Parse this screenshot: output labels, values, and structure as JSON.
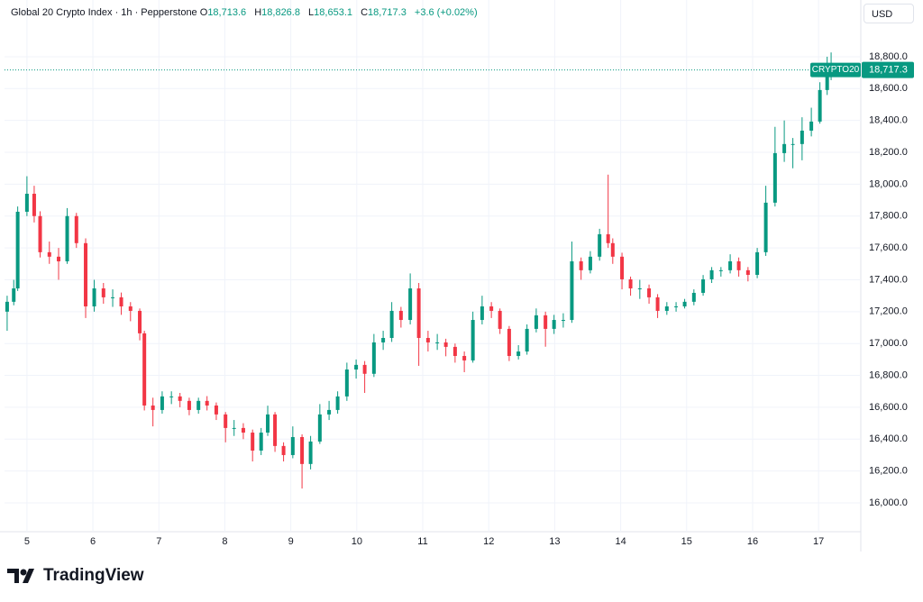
{
  "chart_data": {
    "type": "candlestick",
    "header": {
      "instrument": "Global 20 Crypto Index · 1h · Pepperstone",
      "o_label": "O",
      "o": "18,713.6",
      "h_label": "H",
      "h": "18,826.8",
      "l_label": "L",
      "l": "18,653.1",
      "c_label": "C",
      "c": "18,717.3",
      "change": "+3.6 (+0.02%)"
    },
    "currency": "USD",
    "symbol": "CRYPTO20",
    "last_price": {
      "value": 18717.3,
      "label": "18,717.3"
    },
    "brand": "TradingView",
    "up_color": "#089981",
    "down_color": "#f23645",
    "grid": true,
    "xlim": [
      4.66,
      17.64
    ],
    "xticks": [
      5,
      6,
      7,
      8,
      9,
      10,
      11,
      12,
      13,
      14,
      15,
      16,
      17
    ],
    "ylim": [
      15819,
      19156
    ],
    "yticks": [
      {
        "value": 16000,
        "label": "16,000.0"
      },
      {
        "value": 16200,
        "label": "16,200.0"
      },
      {
        "value": 16400,
        "label": "16,400.0"
      },
      {
        "value": 16600,
        "label": "16,600.0"
      },
      {
        "value": 16800,
        "label": "16,800.0"
      },
      {
        "value": 17000,
        "label": "17,000.0"
      },
      {
        "value": 17200,
        "label": "17,200.0"
      },
      {
        "value": 17400,
        "label": "17,400.0"
      },
      {
        "value": 17600,
        "label": "17,600.0"
      },
      {
        "value": 17800,
        "label": "17,800.0"
      },
      {
        "value": 18000,
        "label": "18,000.0"
      },
      {
        "value": 18200,
        "label": "18,200.0"
      },
      {
        "value": 18400,
        "label": "18,400.0"
      },
      {
        "value": 18600,
        "label": "18,600.0"
      },
      {
        "value": 18800,
        "label": "18,800.0"
      }
    ],
    "x": [
      4.7,
      4.8,
      4.86,
      5.0,
      5.11,
      5.2,
      5.34,
      5.48,
      5.61,
      5.75,
      5.89,
      6.02,
      6.16,
      6.3,
      6.43,
      6.57,
      6.71,
      6.78,
      6.91,
      7.05,
      7.19,
      7.32,
      7.46,
      7.6,
      7.73,
      7.87,
      8.01,
      8.14,
      8.28,
      8.42,
      8.55,
      8.65,
      8.76,
      8.89,
      9.03,
      9.17,
      9.3,
      9.44,
      9.58,
      9.71,
      9.85,
      9.99,
      10.12,
      10.26,
      10.4,
      10.53,
      10.67,
      10.81,
      10.94,
      11.08,
      11.22,
      11.35,
      11.49,
      11.63,
      11.76,
      11.9,
      12.04,
      12.17,
      12.31,
      12.45,
      12.58,
      12.72,
      12.86,
      12.99,
      13.13,
      13.26,
      13.4,
      13.54,
      13.68,
      13.81,
      13.88,
      14.02,
      14.15,
      14.29,
      14.43,
      14.56,
      14.7,
      14.84,
      14.97,
      15.11,
      15.25,
      15.38,
      15.52,
      15.66,
      15.79,
      15.93,
      16.07,
      16.2,
      16.34,
      16.48,
      16.61,
      16.75,
      16.89,
      17.02,
      17.13,
      17.19
    ],
    "ohlc": [
      [
        17200,
        17300,
        17080,
        17262
      ],
      [
        17262,
        17400,
        17240,
        17346
      ],
      [
        17346,
        17860,
        17330,
        17827
      ],
      [
        17827,
        18050,
        17800,
        17940
      ],
      [
        17940,
        17990,
        17760,
        17800
      ],
      [
        17800,
        17830,
        17540,
        17573
      ],
      [
        17573,
        17640,
        17500,
        17545
      ],
      [
        17545,
        17600,
        17400,
        17516
      ],
      [
        17516,
        17850,
        17500,
        17800
      ],
      [
        17800,
        17820,
        17600,
        17630
      ],
      [
        17630,
        17660,
        17160,
        17233
      ],
      [
        17233,
        17400,
        17200,
        17346
      ],
      [
        17346,
        17380,
        17250,
        17290
      ],
      [
        17290,
        17340,
        17230,
        17290
      ],
      [
        17290,
        17320,
        17180,
        17233
      ],
      [
        17233,
        17260,
        17140,
        17205
      ],
      [
        17205,
        17220,
        17020,
        17064
      ],
      [
        17064,
        17080,
        16580,
        16611
      ],
      [
        16611,
        16660,
        16480,
        16583
      ],
      [
        16583,
        16700,
        16560,
        16668
      ],
      [
        16668,
        16700,
        16620,
        16668
      ],
      [
        16668,
        16690,
        16600,
        16640
      ],
      [
        16640,
        16660,
        16550,
        16583
      ],
      [
        16583,
        16660,
        16560,
        16640
      ],
      [
        16640,
        16670,
        16580,
        16611
      ],
      [
        16611,
        16630,
        16520,
        16555
      ],
      [
        16555,
        16570,
        16380,
        16470
      ],
      [
        16470,
        16520,
        16420,
        16470
      ],
      [
        16470,
        16500,
        16400,
        16441
      ],
      [
        16441,
        16460,
        16260,
        16328
      ],
      [
        16328,
        16470,
        16300,
        16441
      ],
      [
        16441,
        16610,
        16420,
        16555
      ],
      [
        16555,
        16570,
        16320,
        16357
      ],
      [
        16357,
        16380,
        16260,
        16300
      ],
      [
        16300,
        16480,
        16280,
        16413
      ],
      [
        16413,
        16430,
        16090,
        16244
      ],
      [
        16244,
        16420,
        16210,
        16385
      ],
      [
        16385,
        16620,
        16370,
        16555
      ],
      [
        16555,
        16640,
        16520,
        16583
      ],
      [
        16583,
        16700,
        16560,
        16668
      ],
      [
        16668,
        16880,
        16640,
        16837
      ],
      [
        16837,
        16900,
        16780,
        16866
      ],
      [
        16866,
        16890,
        16690,
        16810
      ],
      [
        16810,
        17060,
        16790,
        17007
      ],
      [
        17007,
        17080,
        16960,
        17035
      ],
      [
        17035,
        17260,
        17010,
        17205
      ],
      [
        17205,
        17230,
        17100,
        17148
      ],
      [
        17148,
        17440,
        17120,
        17346
      ],
      [
        17346,
        17380,
        16860,
        17035
      ],
      [
        17035,
        17080,
        16950,
        17007
      ],
      [
        17007,
        17060,
        16960,
        17007
      ],
      [
        17007,
        17030,
        16920,
        16979
      ],
      [
        16979,
        17000,
        16880,
        16922
      ],
      [
        16922,
        16950,
        16820,
        16894
      ],
      [
        16894,
        17200,
        16880,
        17148
      ],
      [
        17148,
        17300,
        17120,
        17233
      ],
      [
        17233,
        17260,
        17160,
        17205
      ],
      [
        17205,
        17220,
        17060,
        17092
      ],
      [
        17092,
        17110,
        16890,
        16922
      ],
      [
        16922,
        16990,
        16900,
        16950
      ],
      [
        16950,
        17120,
        16930,
        17092
      ],
      [
        17092,
        17220,
        17070,
        17177
      ],
      [
        17177,
        17200,
        16980,
        17092
      ],
      [
        17092,
        17180,
        17060,
        17148
      ],
      [
        17148,
        17190,
        17100,
        17148
      ],
      [
        17148,
        17640,
        17130,
        17516
      ],
      [
        17516,
        17540,
        17400,
        17460
      ],
      [
        17460,
        17580,
        17440,
        17545
      ],
      [
        17545,
        17720,
        17520,
        17686
      ],
      [
        17686,
        18060,
        17600,
        17630
      ],
      [
        17630,
        17660,
        17500,
        17545
      ],
      [
        17545,
        17570,
        17340,
        17403
      ],
      [
        17403,
        17420,
        17300,
        17346
      ],
      [
        17346,
        17400,
        17280,
        17346
      ],
      [
        17346,
        17370,
        17250,
        17290
      ],
      [
        17290,
        17310,
        17160,
        17205
      ],
      [
        17205,
        17260,
        17180,
        17233
      ],
      [
        17233,
        17260,
        17200,
        17233
      ],
      [
        17233,
        17280,
        17220,
        17262
      ],
      [
        17262,
        17340,
        17240,
        17318
      ],
      [
        17318,
        17430,
        17300,
        17403
      ],
      [
        17403,
        17480,
        17380,
        17460
      ],
      [
        17460,
        17480,
        17420,
        17460
      ],
      [
        17460,
        17560,
        17440,
        17516
      ],
      [
        17516,
        17540,
        17420,
        17460
      ],
      [
        17460,
        17480,
        17390,
        17431
      ],
      [
        17431,
        17600,
        17410,
        17573
      ],
      [
        17573,
        17990,
        17550,
        17884
      ],
      [
        17884,
        18360,
        17860,
        18195
      ],
      [
        18195,
        18400,
        18140,
        18252
      ],
      [
        18252,
        18290,
        18100,
        18252
      ],
      [
        18252,
        18420,
        18150,
        18336
      ],
      [
        18336,
        18480,
        18300,
        18393
      ],
      [
        18393,
        18640,
        18380,
        18591
      ],
      [
        18591,
        18800,
        18560,
        18704
      ],
      [
        18713.6,
        18826.8,
        18653.1,
        18717.3
      ]
    ]
  }
}
